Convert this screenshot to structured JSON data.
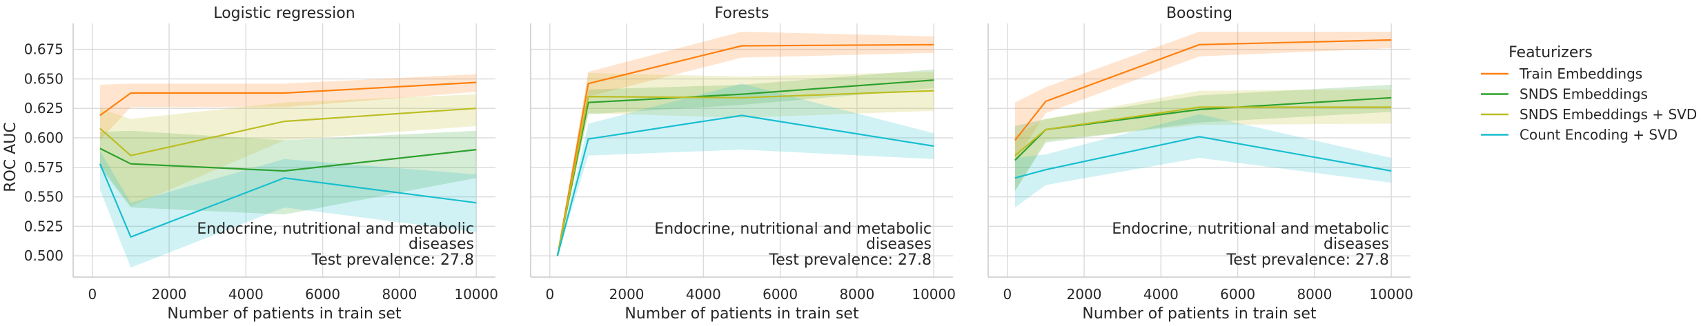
{
  "chart_data": {
    "type": "line",
    "ylabel": "ROC AUC",
    "xlabel": "Number of patients in train set",
    "x": [
      200,
      1000,
      5000,
      10000
    ],
    "xlim": [
      -500,
      10500
    ],
    "ylim": [
      0.482,
      0.697
    ],
    "xticks": [
      0,
      2000,
      4000,
      6000,
      8000,
      10000
    ],
    "yticks": [
      0.5,
      0.525,
      0.55,
      0.575,
      0.6,
      0.625,
      0.65,
      0.675
    ],
    "grid": true,
    "legend": {
      "title": "Featurizers",
      "placement": "right",
      "entries": [
        {
          "name": "Train Embeddings",
          "color": "#ff7f0e"
        },
        {
          "name": "SNDS Embeddings",
          "color": "#2ca02c"
        },
        {
          "name": "SNDS Embeddings + SVD",
          "color": "#bcbd22"
        },
        {
          "name": "Count Encoding + SVD",
          "color": "#17becf"
        }
      ]
    },
    "annotation": [
      "Endocrine, nutritional and metabolic",
      "diseases",
      "Test prevalence: 27.8"
    ],
    "panels": [
      {
        "title": "Logistic regression",
        "series": [
          {
            "name": "Train Embeddings",
            "values": [
              0.619,
              0.638,
              0.638,
              0.647
            ],
            "lower": [
              0.598,
              0.626,
              0.626,
              0.639
            ],
            "upper": [
              0.645,
              0.646,
              0.646,
              0.654
            ]
          },
          {
            "name": "SNDS Embeddings",
            "values": [
              0.591,
              0.578,
              0.572,
              0.59
            ],
            "lower": [
              0.575,
              0.541,
              0.535,
              0.566
            ],
            "upper": [
              0.605,
              0.606,
              0.598,
              0.606
            ]
          },
          {
            "name": "SNDS Embeddings + SVD",
            "values": [
              0.608,
              0.585,
              0.614,
              0.625
            ],
            "lower": [
              0.577,
              0.542,
              0.598,
              0.61
            ],
            "upper": [
              0.625,
              0.616,
              0.63,
              0.637
            ]
          },
          {
            "name": "Count Encoding + SVD",
            "values": [
              0.578,
              0.516,
              0.566,
              0.545
            ],
            "lower": [
              0.556,
              0.49,
              0.541,
              0.52
            ],
            "upper": [
              0.589,
              0.545,
              0.582,
              0.569
            ]
          }
        ]
      },
      {
        "title": "Forests",
        "series": [
          {
            "name": "Train Embeddings",
            "values": [
              0.5,
              0.646,
              0.678,
              0.679
            ],
            "lower": [
              0.5,
              0.635,
              0.668,
              0.672
            ],
            "upper": [
              0.5,
              0.656,
              0.69,
              0.686
            ]
          },
          {
            "name": "SNDS Embeddings",
            "values": [
              0.5,
              0.63,
              0.637,
              0.649
            ],
            "lower": [
              0.5,
              0.62,
              0.628,
              0.642
            ],
            "upper": [
              0.5,
              0.641,
              0.645,
              0.658
            ]
          },
          {
            "name": "SNDS Embeddings + SVD",
            "values": [
              0.5,
              0.635,
              0.634,
              0.64
            ],
            "lower": [
              0.5,
              0.621,
              0.617,
              0.623
            ],
            "upper": [
              0.5,
              0.655,
              0.652,
              0.656
            ]
          },
          {
            "name": "Count Encoding + SVD",
            "values": [
              0.5,
              0.599,
              0.619,
              0.593
            ],
            "lower": [
              0.5,
              0.585,
              0.59,
              0.582
            ],
            "upper": [
              0.5,
              0.612,
              0.646,
              0.604
            ]
          }
        ]
      },
      {
        "title": "Boosting",
        "series": [
          {
            "name": "Train Embeddings",
            "values": [
              0.598,
              0.631,
              0.679,
              0.683
            ],
            "lower": [
              0.58,
              0.621,
              0.669,
              0.676
            ],
            "upper": [
              0.63,
              0.643,
              0.69,
              0.69
            ]
          },
          {
            "name": "SNDS Embeddings",
            "values": [
              0.581,
              0.607,
              0.624,
              0.634
            ],
            "lower": [
              0.555,
              0.596,
              0.613,
              0.622
            ],
            "upper": [
              0.61,
              0.616,
              0.636,
              0.645
            ]
          },
          {
            "name": "SNDS Embeddings + SVD",
            "values": [
              0.585,
              0.607,
              0.626,
              0.626
            ],
            "lower": [
              0.555,
              0.598,
              0.611,
              0.612
            ],
            "upper": [
              0.602,
              0.616,
              0.64,
              0.641
            ]
          },
          {
            "name": "Count Encoding + SVD",
            "values": [
              0.566,
              0.573,
              0.601,
              0.572
            ],
            "lower": [
              0.541,
              0.56,
              0.583,
              0.562
            ],
            "upper": [
              0.583,
              0.586,
              0.62,
              0.583
            ]
          }
        ]
      }
    ]
  }
}
